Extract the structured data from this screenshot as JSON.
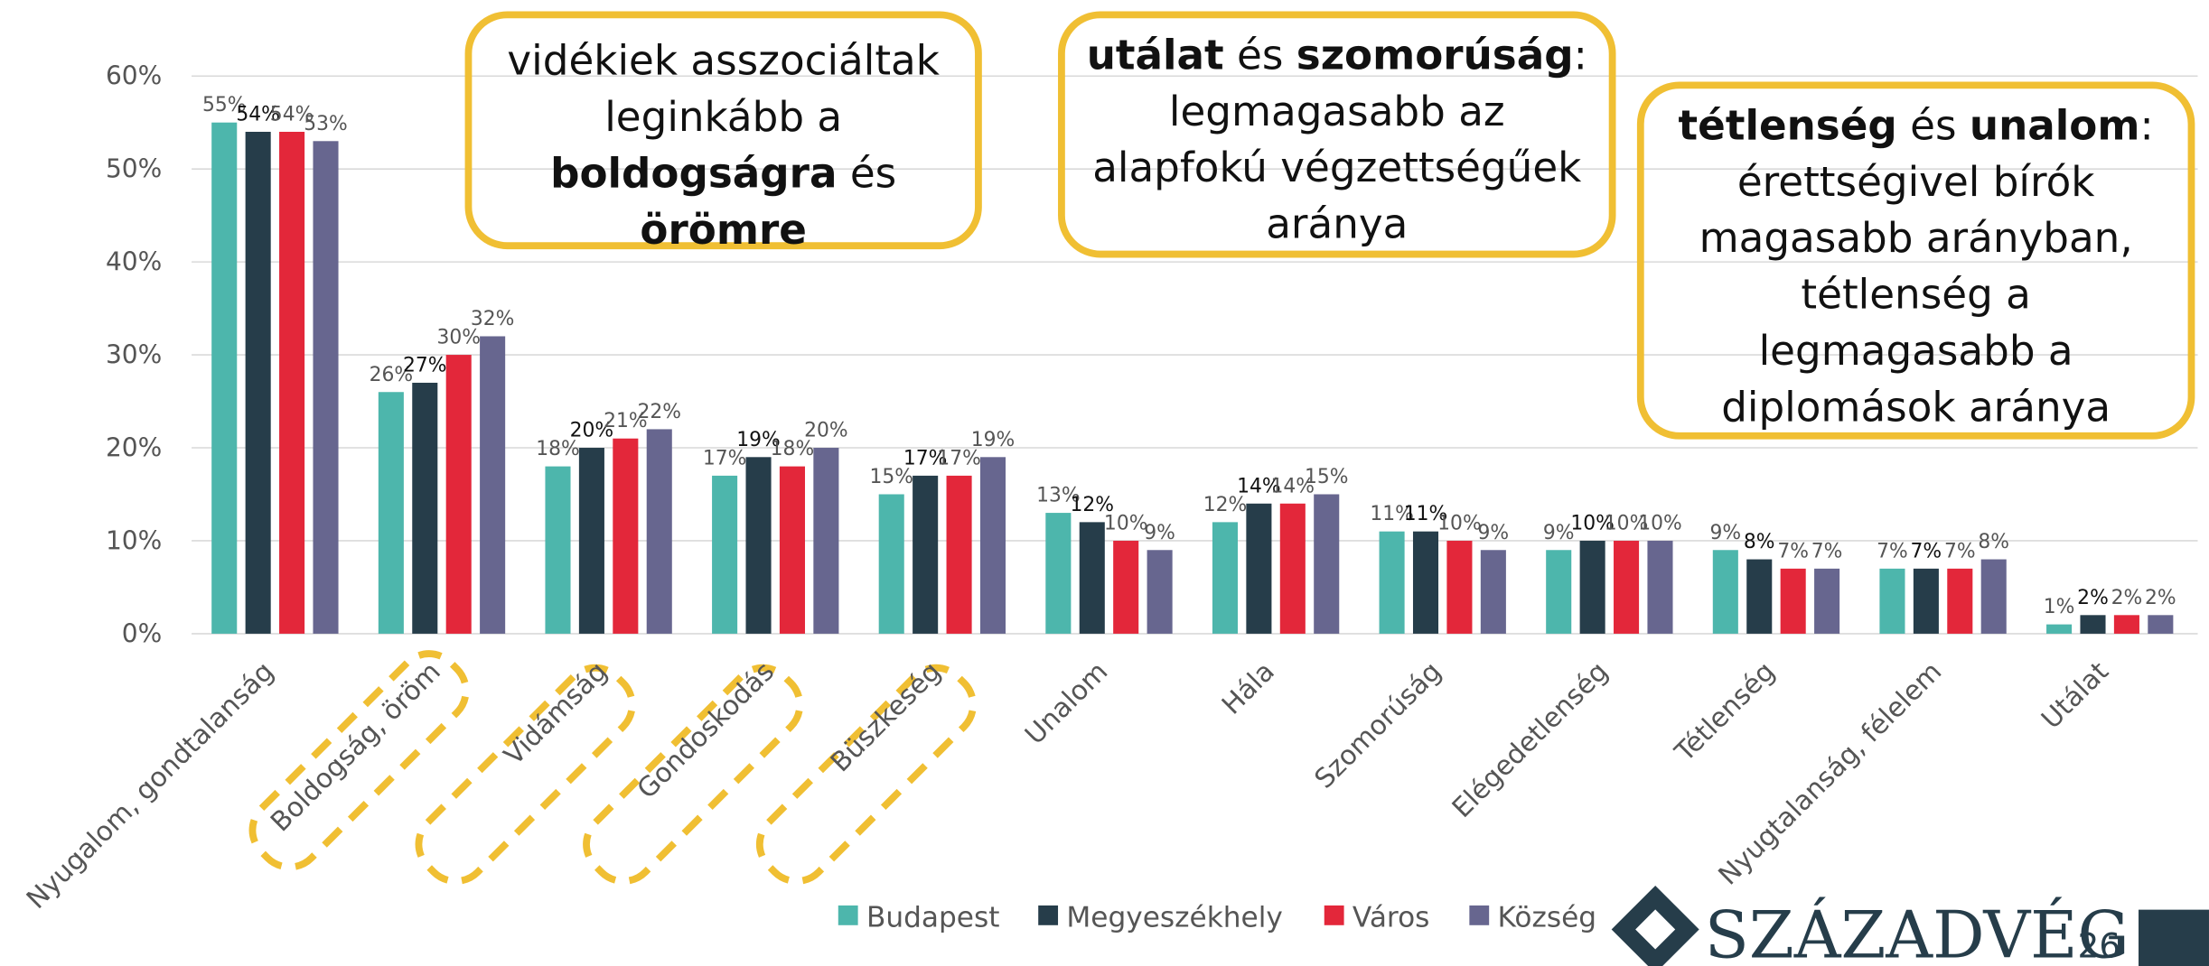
{
  "chart_data": {
    "type": "bar",
    "categories": [
      "Nyugalom, gondtalanság",
      "Boldogság, öröm",
      "Vidámság",
      "Gondoskodás",
      "Büszkeség",
      "Unalom",
      "Hála",
      "Szomorúság",
      "Elégedetlenség",
      "Tétlenség",
      "Nyugtalanság, félelem",
      "Utálat"
    ],
    "series": [
      {
        "name": "Budapest",
        "color": "#4db6ac",
        "values": [
          55,
          26,
          18,
          17,
          15,
          13,
          12,
          11,
          9,
          9,
          7,
          1
        ],
        "value_labels": [
          "55%",
          "26%",
          "18%",
          "17%",
          "15%",
          "13%",
          "12%",
          "11%",
          "9%",
          "9%",
          "7%",
          "1%"
        ]
      },
      {
        "name": "Megyeszékhely",
        "color": "#263d4a",
        "values": [
          54,
          27,
          20,
          19,
          17,
          12,
          14,
          11,
          10,
          8,
          7,
          2
        ],
        "value_labels": [
          "54%",
          "27%",
          "20%",
          "19%",
          "17%",
          "12%",
          "14%",
          "11%",
          "10%",
          "8%",
          "7%",
          "2%"
        ]
      },
      {
        "name": "Város",
        "color": "#e3273a",
        "values": [
          54,
          30,
          21,
          18,
          17,
          10,
          14,
          10,
          10,
          7,
          7,
          2
        ],
        "value_labels": [
          "54%",
          "30%",
          "21%",
          "18%",
          "17%",
          "10%",
          "14%",
          "10%",
          "10%",
          "7%",
          "7%",
          "2%"
        ]
      },
      {
        "name": "Község",
        "color": "#67668f",
        "values": [
          53,
          32,
          22,
          20,
          19,
          9,
          15,
          9,
          10,
          7,
          8,
          2
        ],
        "value_labels": [
          "53%",
          "32%",
          "22%",
          "20%",
          "19%",
          "9%",
          "15%",
          "9%",
          "10%",
          "7%",
          "8%",
          "2%"
        ]
      }
    ],
    "ylim": [
      0,
      60
    ],
    "yticks": [
      {
        "value": 0,
        "label": "0%"
      },
      {
        "value": 10,
        "label": "10%"
      },
      {
        "value": 20,
        "label": "20%"
      },
      {
        "value": 30,
        "label": "30%"
      },
      {
        "value": 40,
        "label": "40%"
      },
      {
        "value": 50,
        "label": "50%"
      },
      {
        "value": 60,
        "label": "60%"
      }
    ],
    "grid": true,
    "legend": "bottom",
    "annotations": [
      {
        "parts": [
          {
            "text": "vidékiek asszociáltak leginkább a ",
            "bold": false
          },
          {
            "text": "boldogságra",
            "bold": true
          },
          {
            "text": " és ",
            "bold": false
          },
          {
            "text": "örömre",
            "bold": true
          }
        ]
      },
      {
        "parts": [
          {
            "text": "utálat",
            "bold": true
          },
          {
            "text": " és ",
            "bold": false
          },
          {
            "text": "szomorúság",
            "bold": true
          },
          {
            "text": ": legmagasabb az alapfokú végzettségűek aránya",
            "bold": false
          }
        ]
      },
      {
        "parts": [
          {
            "text": "tétlenség",
            "bold": true
          },
          {
            "text": " és ",
            "bold": false
          },
          {
            "text": "unalom",
            "bold": true
          },
          {
            "text": ": érettségivel bírók magasabb arányban, tétlenség a legmagasabb a diplomások aránya",
            "bold": false
          }
        ]
      }
    ]
  },
  "footer": {
    "logo": "SZÁZADVÉG",
    "page_number": 26
  }
}
